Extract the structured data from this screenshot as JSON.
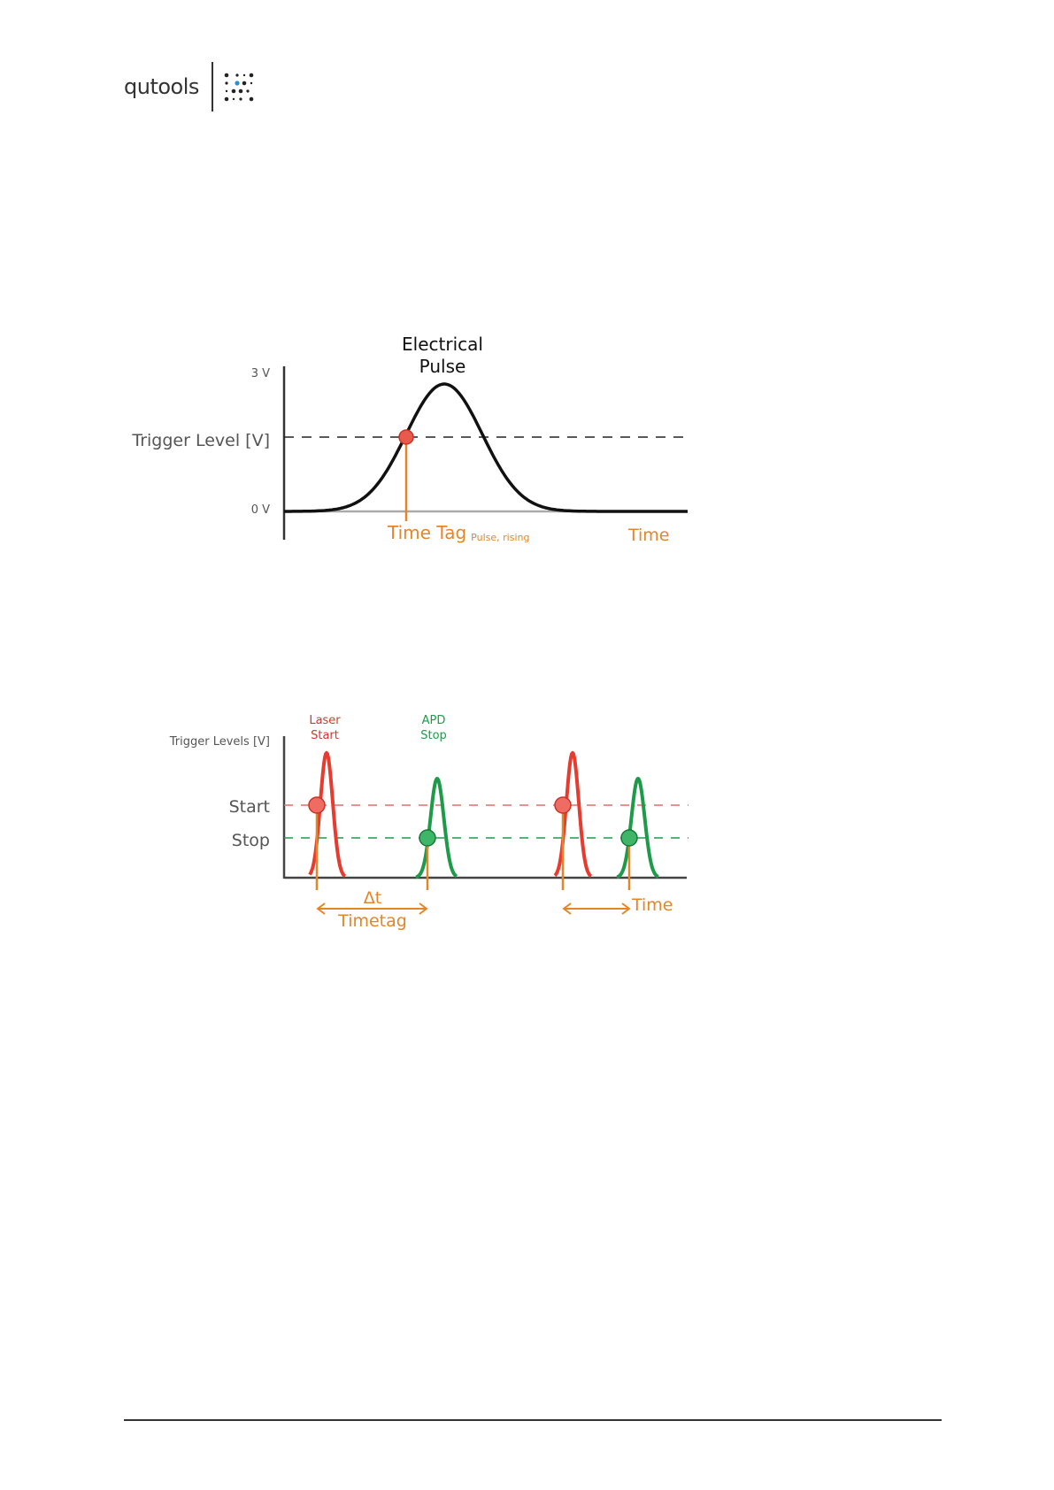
{
  "header": {
    "logo_text": "qutools"
  },
  "diagram1": {
    "pulse_label_line1": "Electrical",
    "pulse_label_line2": "Pulse",
    "level_high": "3 V",
    "level_low": "0 V",
    "ylabel": "Trigger Level [V]",
    "timetag_label": "Time Tag",
    "timetag_sub": "Pulse, rising",
    "xlabel": "Time",
    "colors": {
      "pulse": "#111111",
      "marker": "#e63b2e",
      "timetag": "#e3862a",
      "baseline": "#aaaaaa"
    }
  },
  "diagram2": {
    "ylabel": "Trigger Levels [V]",
    "laser_line1": "Laser",
    "laser_line2": "Start",
    "apd_line1": "APD",
    "apd_line2": "Stop",
    "start_label": "Start",
    "stop_label": "Stop",
    "delta_label": "Δt",
    "timetag_label": "Timetag",
    "xlabel": "Time",
    "colors": {
      "start": "#e63b2e",
      "stop": "#1e9b48",
      "timetag": "#e3862a"
    }
  }
}
